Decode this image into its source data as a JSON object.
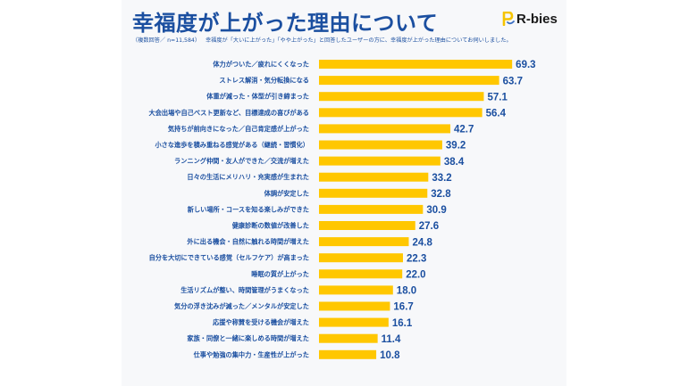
{
  "header": {
    "title": "幸福度が上がった理由について",
    "note_left": "（複数回答／ n=11,584）",
    "note_right": "幸福度が「大いに上がった」「やや上がった」と回答したユーザーの方に、幸福度が上がった理由についてお伺いしました。",
    "logo_text": "R-bies",
    "logo_icon": "r-bies-logo-icon"
  },
  "colors": {
    "bar": "#ffc700",
    "text": "#1b4fa0",
    "panel_bg": "#f7f8fa"
  },
  "chart_data": {
    "type": "bar",
    "orientation": "horizontal",
    "title": "幸福度が上がった理由について",
    "xlabel": "",
    "ylabel": "",
    "unit": "%",
    "grid": false,
    "legend": "none",
    "categories": [
      "体力がついた／疲れにくくなった",
      "ストレス解消・気分転換になる",
      "体重が減った・体型が引き締まった",
      "大会出場や自己ベスト更新など、目標達成の喜びがある",
      "気持ちが前向きになった／自己肯定感が上がった",
      "小さな進歩を積み重ねる感覚がある（継続・習慣化）",
      "ランニング仲間・友人ができた／交流が増えた",
      "日々の生活にメリハリ・充実感が生まれた",
      "体調が安定した",
      "新しい場所・コースを知る楽しみができた",
      "健康診断の数値が改善した",
      "外に出る機会・自然に触れる時間が増えた",
      "自分を大切にできている感覚（セルフケア）が高まった",
      "睡眠の質が上がった",
      "生活リズムが整い、時間管理がうまくなった",
      "気分の浮き沈みが減った／メンタルが安定した",
      "応援や称賛を受ける機会が増えた",
      "家族・同僚と一緒に楽しめる時間が増えた",
      "仕事や勉強の集中力・生産性が上がった"
    ],
    "values": [
      69.3,
      63.7,
      57.1,
      56.4,
      42.7,
      39.2,
      38.4,
      33.2,
      32.8,
      30.9,
      27.6,
      24.8,
      22.3,
      22.0,
      18.0,
      16.7,
      16.1,
      11.4,
      10.8
    ],
    "value_labels": [
      "69.3",
      "63.7",
      "57.1",
      "56.4",
      "42.7",
      "39.2",
      "38.4",
      "33.2",
      "32.8",
      "30.9",
      "27.6",
      "24.8",
      "22.3",
      "22.0",
      "18.0",
      "16.7",
      "16.1",
      "11.4",
      "10.8"
    ]
  }
}
